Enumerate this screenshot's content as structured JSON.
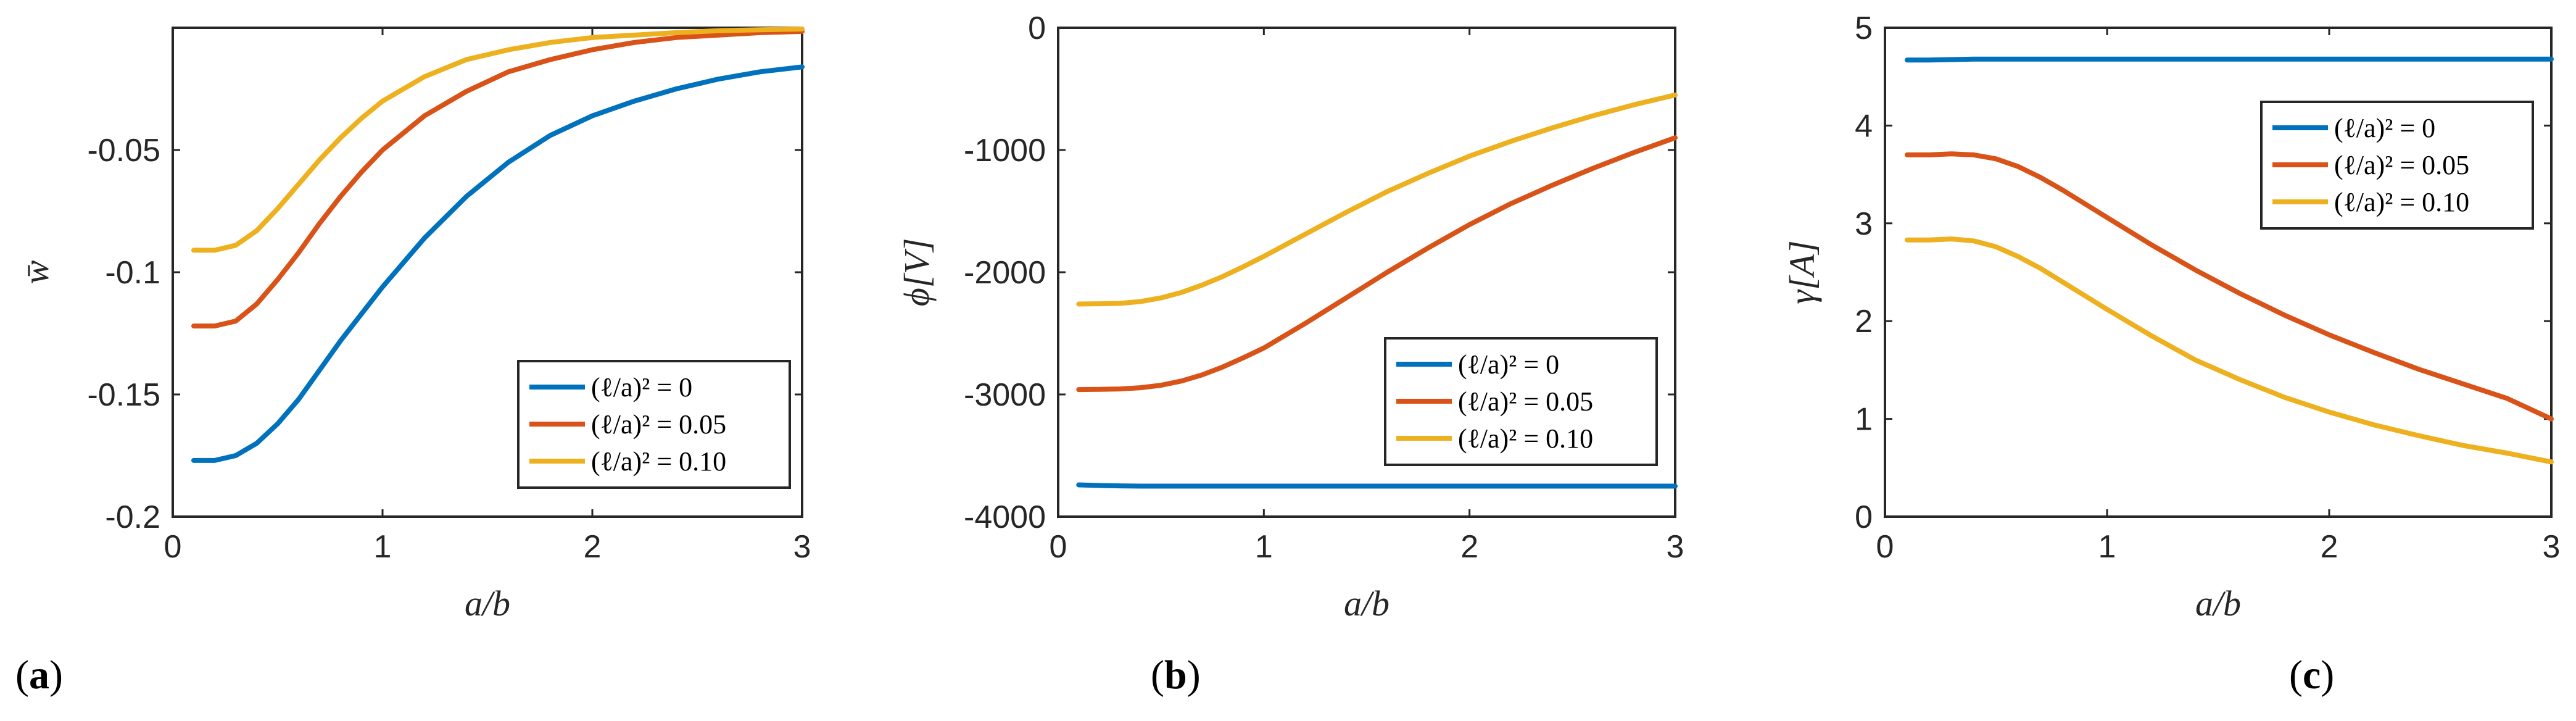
{
  "colors": {
    "blue": "#0072BD",
    "orange": "#D95319",
    "yellow": "#EDB120"
  },
  "chart_data": [
    {
      "type": "line",
      "panel_label_open": "(",
      "panel_label_letter": "a",
      "panel_label_close": ")",
      "xlabel": "a/b",
      "ylabel": "w̄",
      "xlim": [
        0,
        3
      ],
      "ylim": [
        -0.2,
        0
      ],
      "xticks": [
        0,
        1,
        2,
        3
      ],
      "xtick_labels": [
        "0",
        "1",
        "2",
        "3"
      ],
      "yticks": [
        -0.2,
        -0.15,
        -0.1,
        -0.05
      ],
      "ytick_labels": [
        "-0.2",
        "-0.15",
        "-0.1",
        "-0.05"
      ],
      "legend_position": "bottom-right",
      "x": [
        0.1,
        0.2,
        0.3,
        0.4,
        0.5,
        0.6,
        0.7,
        0.8,
        0.9,
        1.0,
        1.2,
        1.4,
        1.6,
        1.8,
        2.0,
        2.2,
        2.4,
        2.6,
        2.8,
        3.0
      ],
      "series": [
        {
          "name": "(ℓ/a)² = 0",
          "color": "#0072BD",
          "values": [
            -0.177,
            -0.177,
            -0.175,
            -0.17,
            -0.162,
            -0.152,
            -0.14,
            -0.128,
            -0.117,
            -0.106,
            -0.086,
            -0.069,
            -0.055,
            -0.044,
            -0.036,
            -0.03,
            -0.025,
            -0.021,
            -0.018,
            -0.016
          ]
        },
        {
          "name": "(ℓ/a)² = 0.05",
          "color": "#D95319",
          "values": [
            -0.122,
            -0.122,
            -0.12,
            -0.113,
            -0.103,
            -0.092,
            -0.08,
            -0.069,
            -0.059,
            -0.05,
            -0.036,
            -0.026,
            -0.018,
            -0.013,
            -0.009,
            -0.006,
            -0.004,
            -0.003,
            -0.002,
            -0.0015
          ]
        },
        {
          "name": "(ℓ/a)² = 0.10",
          "color": "#EDB120",
          "values": [
            -0.091,
            -0.091,
            -0.089,
            -0.083,
            -0.074,
            -0.064,
            -0.054,
            -0.045,
            -0.037,
            -0.03,
            -0.02,
            -0.013,
            -0.009,
            -0.006,
            -0.004,
            -0.003,
            -0.002,
            -0.0012,
            -0.0008,
            -0.0005
          ]
        }
      ]
    },
    {
      "type": "line",
      "panel_label_open": "(",
      "panel_label_letter": "b",
      "panel_label_close": ")",
      "xlabel": "a/b",
      "ylabel": "ϕ[V]",
      "xlim": [
        0,
        3
      ],
      "ylim": [
        -4000,
        0
      ],
      "xticks": [
        0,
        1,
        2,
        3
      ],
      "xtick_labels": [
        "0",
        "1",
        "2",
        "3"
      ],
      "yticks": [
        -4000,
        -3000,
        -2000,
        -1000,
        0
      ],
      "ytick_labels": [
        "-4000",
        "-3000",
        "-2000",
        "-1000",
        "0"
      ],
      "legend_position": "right",
      "x": [
        0.1,
        0.2,
        0.3,
        0.4,
        0.5,
        0.6,
        0.7,
        0.8,
        0.9,
        1.0,
        1.2,
        1.4,
        1.6,
        1.8,
        2.0,
        2.2,
        2.4,
        2.6,
        2.8,
        3.0
      ],
      "series": [
        {
          "name": "(ℓ/a)² = 0",
          "color": "#0072BD",
          "values": [
            -3740,
            -3745,
            -3748,
            -3750,
            -3750,
            -3750,
            -3750,
            -3750,
            -3750,
            -3750,
            -3750,
            -3750,
            -3750,
            -3750,
            -3750,
            -3750,
            -3750,
            -3750,
            -3750,
            -3750
          ]
        },
        {
          "name": "(ℓ/a)² = 0.05",
          "color": "#D95319",
          "values": [
            -2960,
            -2958,
            -2955,
            -2945,
            -2925,
            -2890,
            -2840,
            -2775,
            -2700,
            -2620,
            -2420,
            -2210,
            -2000,
            -1800,
            -1610,
            -1440,
            -1290,
            -1150,
            -1020,
            -900
          ]
        },
        {
          "name": "(ℓ/a)² = 0.10",
          "color": "#EDB120",
          "values": [
            -2260,
            -2258,
            -2255,
            -2240,
            -2210,
            -2165,
            -2105,
            -2035,
            -1955,
            -1870,
            -1690,
            -1510,
            -1340,
            -1190,
            -1050,
            -930,
            -820,
            -720,
            -630,
            -550
          ]
        }
      ]
    },
    {
      "type": "line",
      "panel_label_open": "(",
      "panel_label_letter": "c",
      "panel_label_close": ")",
      "xlabel": "a/b",
      "ylabel": "γ[A]",
      "xlim": [
        0,
        3
      ],
      "ylim": [
        0,
        5
      ],
      "xticks": [
        0,
        1,
        2,
        3
      ],
      "xtick_labels": [
        "0",
        "1",
        "2",
        "3"
      ],
      "yticks": [
        0,
        1,
        2,
        3,
        4,
        5
      ],
      "ytick_labels": [
        "0",
        "1",
        "2",
        "3",
        "4",
        "5"
      ],
      "legend_position": "top-right",
      "x": [
        0.1,
        0.2,
        0.3,
        0.4,
        0.5,
        0.6,
        0.7,
        0.8,
        0.9,
        1.0,
        1.2,
        1.4,
        1.6,
        1.8,
        2.0,
        2.2,
        2.4,
        2.6,
        2.8,
        3.0
      ],
      "series": [
        {
          "name": "(ℓ/a)² = 0",
          "color": "#0072BD",
          "values": [
            4.67,
            4.67,
            4.675,
            4.68,
            4.68,
            4.68,
            4.68,
            4.68,
            4.68,
            4.68,
            4.68,
            4.68,
            4.68,
            4.68,
            4.68,
            4.68,
            4.68,
            4.68,
            4.68,
            4.68
          ]
        },
        {
          "name": "(ℓ/a)² = 0.05",
          "color": "#D95319",
          "values": [
            3.7,
            3.7,
            3.71,
            3.7,
            3.66,
            3.58,
            3.47,
            3.34,
            3.2,
            3.06,
            2.78,
            2.52,
            2.28,
            2.06,
            1.86,
            1.68,
            1.51,
            1.36,
            1.21,
            1.0
          ]
        },
        {
          "name": "(ℓ/a)² = 0.10",
          "color": "#EDB120",
          "values": [
            2.83,
            2.83,
            2.84,
            2.82,
            2.76,
            2.66,
            2.54,
            2.4,
            2.26,
            2.12,
            1.85,
            1.6,
            1.4,
            1.22,
            1.07,
            0.94,
            0.83,
            0.73,
            0.65,
            0.56
          ]
        }
      ]
    }
  ]
}
